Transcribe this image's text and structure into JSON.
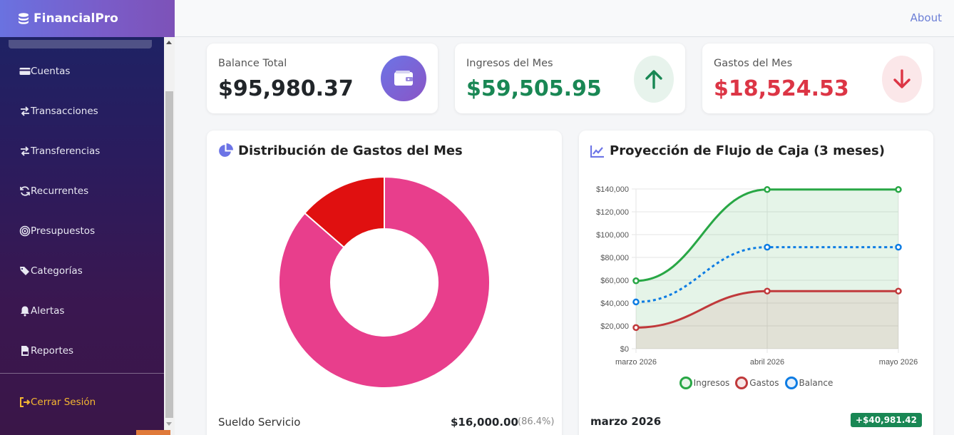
{
  "app": {
    "brand": "FinancialPro",
    "about": "About"
  },
  "sidebar": {
    "items": [
      {
        "label": "Cuentas",
        "icon": "credit-card-icon"
      },
      {
        "label": "Transacciones",
        "icon": "exchange-icon"
      },
      {
        "label": "Transferencias",
        "icon": "exchange-icon"
      },
      {
        "label": "Recurrentes",
        "icon": "sync-icon"
      },
      {
        "label": "Presupuestos",
        "icon": "target-icon"
      },
      {
        "label": "Categorías",
        "icon": "tags-icon"
      },
      {
        "label": "Alertas",
        "icon": "bell-icon"
      },
      {
        "label": "Reportes",
        "icon": "pdf-file-icon"
      }
    ],
    "logout": "Cerrar Sesión"
  },
  "stats": {
    "balance": {
      "label": "Balance Total",
      "value": "$95,980.37"
    },
    "income": {
      "label": "Ingresos del Mes",
      "value": "$59,505.95"
    },
    "expense": {
      "label": "Gastos del Mes",
      "value": "$18,524.53"
    }
  },
  "donut": {
    "title": "Distribución de Gastos del Mes",
    "row": {
      "label": "Sueldo Servicio",
      "amount": "$16,000.00",
      "pct": "(86.4%)"
    }
  },
  "projection": {
    "title": "Proyección de Flujo de Caja (3 meses)",
    "legend": [
      "Ingresos",
      "Gastos",
      "Balance"
    ],
    "footer_month": "marzo 2026",
    "footer_badge": "+$40,981.42"
  },
  "colors": {
    "income": "#28a745",
    "expense": "#c0393b",
    "balance": "#0d7ce3",
    "donut_main": "#e83e8c",
    "donut_second": "#e01010"
  },
  "chart_data": [
    {
      "type": "pie",
      "title": "Distribución de Gastos del Mes",
      "categories": [
        "Sueldo Servicio",
        ""
      ],
      "values": [
        86.4,
        13.6
      ]
    },
    {
      "type": "line",
      "title": "Proyección de Flujo de Caja (3 meses)",
      "categories": [
        "marzo 2026",
        "abril 2026",
        "mayo 2026"
      ],
      "series": [
        {
          "name": "Ingresos",
          "values": [
            59506,
            139500,
            139500
          ]
        },
        {
          "name": "Gastos",
          "values": [
            18525,
            50500,
            50500
          ]
        },
        {
          "name": "Balance",
          "values": [
            40981,
            89000,
            89000
          ]
        }
      ],
      "yticks": [
        "$0",
        "$20,000",
        "$40,000",
        "$60,000",
        "$80,000",
        "$100,000",
        "$120,000",
        "$140,000"
      ],
      "ylim": [
        0,
        140000
      ],
      "grid": true,
      "legend": "bottom"
    }
  ]
}
